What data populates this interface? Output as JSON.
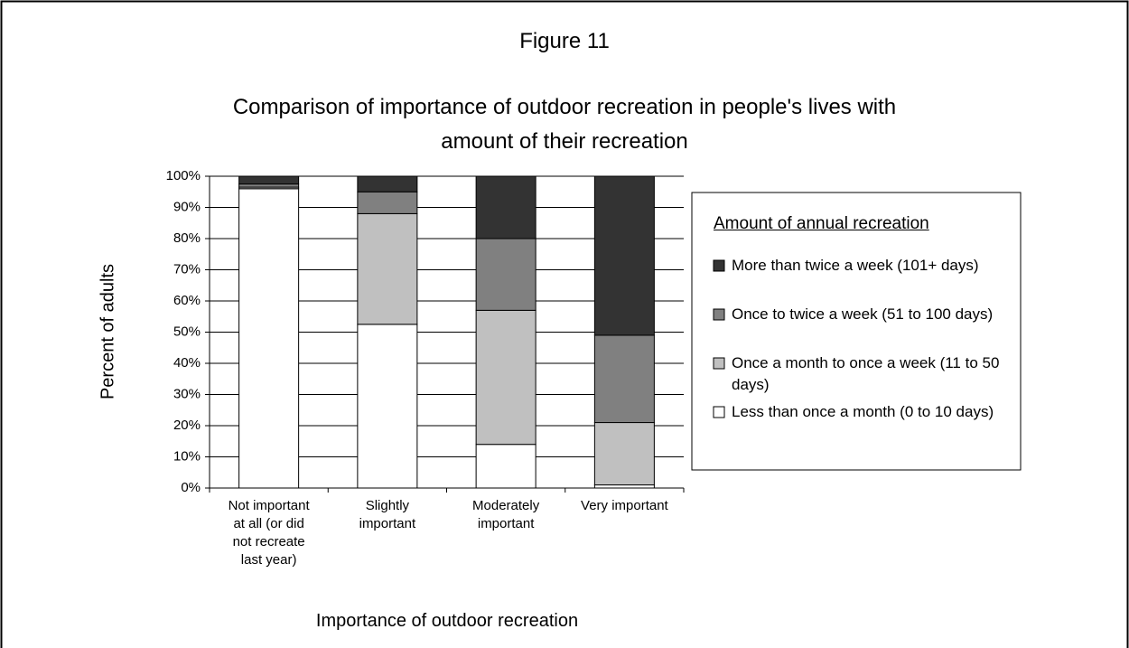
{
  "chart_data": {
    "type": "stacked_bar",
    "figure_label": "Figure 11",
    "title": "Comparison of importance of outdoor recreation in people's lives with amount of their recreation",
    "x_label": "Importance of outdoor recreation",
    "y_label": "Percent of adults",
    "legend_title": "Amount of annual recreation",
    "categories": [
      "Not important at all (or did not recreate last year)",
      "Slightly important",
      "Moderately important",
      "Very important"
    ],
    "series": [
      {
        "name": "Less than once a month (0 to 10 days)",
        "color": "#ffffff",
        "values": [
          96,
          52.5,
          14,
          1
        ]
      },
      {
        "name": "Once a month to once a week (11 to 50 days)",
        "color": "#c0c0c0",
        "values": [
          0.5,
          35.5,
          43,
          20
        ]
      },
      {
        "name": "Once to twice a week (51 to 100 days)",
        "color": "#808080",
        "values": [
          1,
          7,
          23,
          28
        ]
      },
      {
        "name": "More than twice a week (101+ days)",
        "color": "#333333",
        "values": [
          2.5,
          5,
          20,
          51
        ]
      }
    ],
    "ylim": [
      0,
      100
    ],
    "yticks": [
      {
        "value": 0,
        "label": "0%"
      },
      {
        "value": 10,
        "label": "10%"
      },
      {
        "value": 20,
        "label": "20%"
      },
      {
        "value": 30,
        "label": "30%"
      },
      {
        "value": 40,
        "label": "40%"
      },
      {
        "value": 50,
        "label": "50%"
      },
      {
        "value": 60,
        "label": "60%"
      },
      {
        "value": 70,
        "label": "70%"
      },
      {
        "value": 80,
        "label": "80%"
      },
      {
        "value": 90,
        "label": "90%"
      },
      {
        "value": 100,
        "label": "100%"
      }
    ],
    "grid": true
  }
}
